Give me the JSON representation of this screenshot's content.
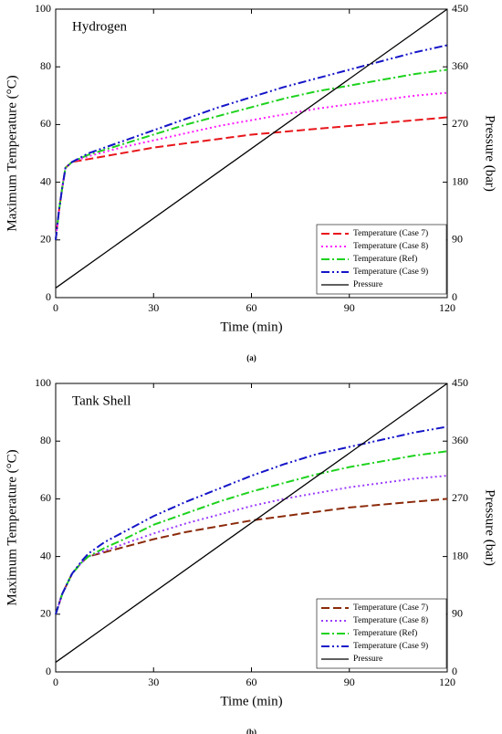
{
  "chart_data": [
    {
      "type": "line",
      "annotation": "Hydrogen",
      "caption": "(a)",
      "x_label": "Time (min)",
      "y_label": "Maximum Temperature (°C)",
      "y2_label": "Pressure (bar)",
      "xlim": [
        0,
        120
      ],
      "xticks": [
        0,
        30,
        60,
        90,
        120
      ],
      "ylim": [
        0,
        100
      ],
      "yticks": [
        0,
        20,
        40,
        60,
        80,
        100
      ],
      "y2lim": [
        0,
        450
      ],
      "y2ticks": [
        0,
        90,
        180,
        270,
        360,
        450
      ],
      "legend": "lower right",
      "x": [
        0,
        1,
        2,
        3,
        5,
        10,
        20,
        30,
        40,
        50,
        60,
        70,
        80,
        90,
        100,
        110,
        120
      ],
      "series": [
        {
          "name": "Temperature (Case 7)",
          "color": "#e8161b",
          "dash": "dash",
          "values": [
            20,
            30,
            38,
            45,
            47,
            48,
            50,
            52,
            53.5,
            55,
            56.5,
            57.5,
            58.5,
            59.5,
            60.5,
            61.5,
            62.5
          ]
        },
        {
          "name": "Temperature (Case 8)",
          "color": "#ff1fff",
          "dash": "dot",
          "values": [
            20,
            30,
            38,
            45,
            47,
            49,
            52,
            54.5,
            57,
            59.5,
            61.5,
            63.5,
            65.5,
            67,
            68.5,
            70,
            71
          ]
        },
        {
          "name": "Temperature (Ref)",
          "color": "#1ed21e",
          "dash": "dashdot",
          "values": [
            20,
            30,
            38,
            45,
            47,
            49.5,
            53,
            56.5,
            60,
            63,
            66,
            69,
            71.5,
            73.5,
            75.5,
            77.5,
            79
          ]
        },
        {
          "name": "Temperature (Case 9)",
          "color": "#1515c8",
          "dash": "dashdotdot",
          "values": [
            20,
            30,
            38,
            45,
            47,
            50,
            54,
            58,
            62,
            66,
            69.5,
            73,
            76,
            79,
            82,
            85,
            87.5
          ]
        },
        {
          "name": "Pressure",
          "color": "#000000",
          "dash": "solid",
          "axis": "y2",
          "x": [
            0,
            120
          ],
          "values": [
            15,
            450
          ]
        }
      ]
    },
    {
      "type": "line",
      "annotation": "Tank Shell",
      "caption": "(b)",
      "x_label": "Time (min)",
      "y_label": "Maximum Temperature (°C)",
      "y2_label": "Pressure (bar)",
      "xlim": [
        0,
        120
      ],
      "xticks": [
        0,
        30,
        60,
        90,
        120
      ],
      "ylim": [
        0,
        100
      ],
      "yticks": [
        0,
        20,
        40,
        60,
        80,
        100
      ],
      "y2lim": [
        0,
        450
      ],
      "y2ticks": [
        0,
        90,
        180,
        270,
        360,
        450
      ],
      "legend": "lower right",
      "x": [
        0,
        2,
        5,
        8,
        10,
        15,
        20,
        30,
        40,
        50,
        60,
        70,
        80,
        90,
        100,
        110,
        120
      ],
      "series": [
        {
          "name": "Temperature (Case 7)",
          "color": "#8b2a0a",
          "dash": "dash",
          "values": [
            20,
            27,
            34,
            38,
            40,
            41.5,
            43,
            46,
            48.5,
            50.5,
            52.5,
            54,
            55.5,
            57,
            58,
            59,
            60
          ]
        },
        {
          "name": "Temperature (Case 8)",
          "color": "#9b3cff",
          "dash": "dot",
          "values": [
            20,
            27,
            34,
            38,
            40,
            42,
            44,
            48,
            51.5,
            54.5,
            57.5,
            60,
            62,
            64,
            65.5,
            67,
            68
          ]
        },
        {
          "name": "Temperature (Ref)",
          "color": "#1ed21e",
          "dash": "dashdot",
          "values": [
            20,
            27,
            34,
            38,
            40,
            43,
            45.5,
            51,
            55,
            59,
            62.5,
            65.5,
            68.5,
            71,
            73,
            75,
            76.5
          ]
        },
        {
          "name": "Temperature (Case 9)",
          "color": "#1515c8",
          "dash": "dashdotdot",
          "values": [
            20,
            27,
            34,
            38.5,
            41,
            45,
            48,
            54,
            59,
            63.5,
            68,
            72,
            75.5,
            78,
            80.5,
            83,
            85
          ]
        },
        {
          "name": "Pressure",
          "color": "#000000",
          "dash": "solid",
          "axis": "y2",
          "x": [
            0,
            120
          ],
          "values": [
            15,
            450
          ]
        }
      ]
    }
  ]
}
